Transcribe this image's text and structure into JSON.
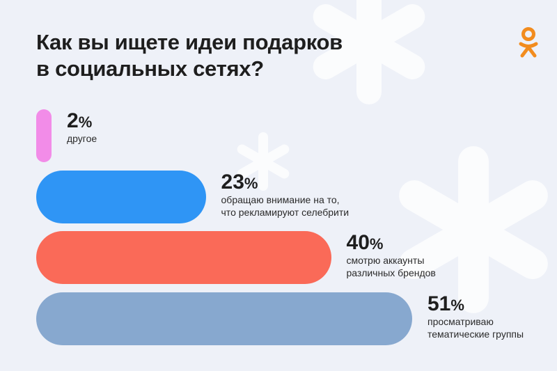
{
  "title": {
    "line1": "Как вы ищете идеи подарков",
    "line2": "в социальных сетях?"
  },
  "brand": {
    "logo_icon": "odnoklassniki-logo-icon",
    "color": "#f28c1e"
  },
  "chart_data": {
    "type": "bar",
    "orientation": "horizontal",
    "unit": "%",
    "categories": [
      "другое",
      "обращаю внимание на то, что рекламируют селебрити",
      "смотрю аккаунты различных брендов",
      "просматриваю тематические группы"
    ],
    "values": [
      2,
      23,
      40,
      51
    ],
    "labels": [
      {
        "value": "2",
        "symbol": "%",
        "lines": [
          "другое"
        ]
      },
      {
        "value": "23",
        "symbol": "%",
        "lines": [
          "обращаю внимание на то,",
          "что рекламируют селебрити"
        ]
      },
      {
        "value": "40",
        "symbol": "%",
        "lines": [
          "смотрю аккаунты",
          "различных брендов"
        ]
      },
      {
        "value": "51",
        "symbol": "%",
        "lines": [
          "просматриваю",
          "тематические группы"
        ]
      }
    ],
    "colors": [
      "#f28ce8",
      "#2f95f5",
      "#fa6a58",
      "#87a8cf"
    ],
    "xlim": [
      0,
      51
    ]
  }
}
